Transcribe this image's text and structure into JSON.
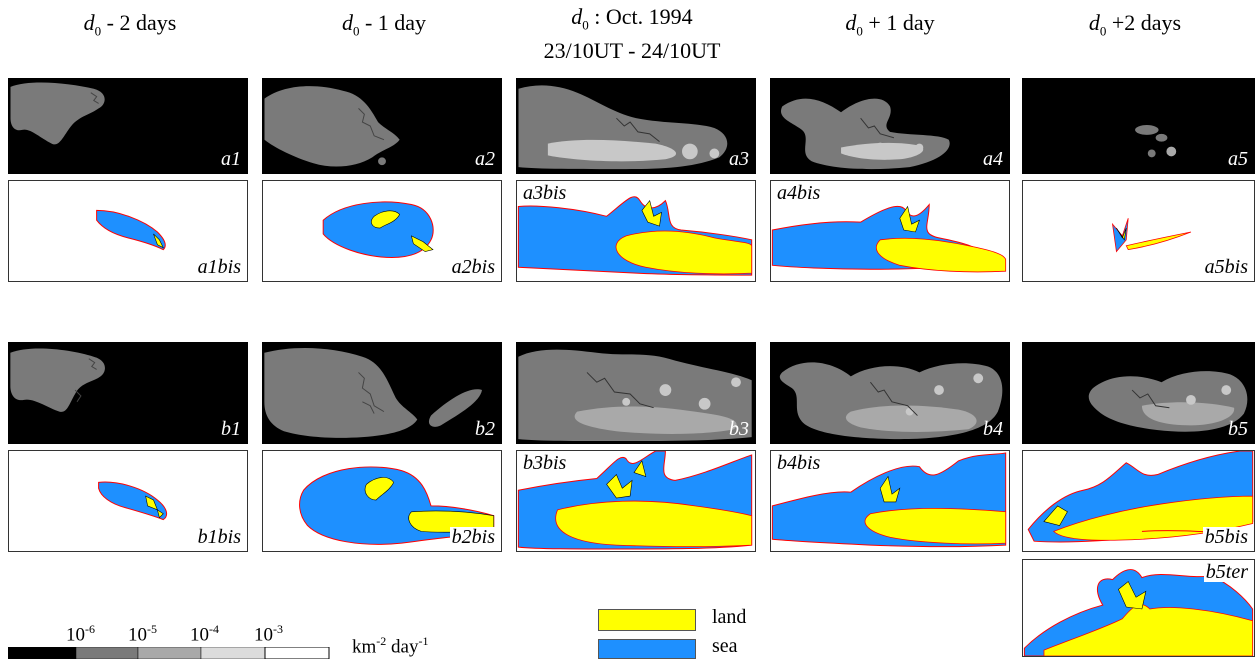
{
  "headers": [
    {
      "sym": "d",
      "sub": "0",
      "rest": " - 2 days",
      "line2": ""
    },
    {
      "sym": "d",
      "sub": "0",
      "rest": " - 1 day",
      "line2": ""
    },
    {
      "sym": "d",
      "sub": "0",
      "rest": " : Oct. 1994",
      "line2": "23/10UT - 24/10UT"
    },
    {
      "sym": "d",
      "sub": "0",
      "rest": " + 1 day",
      "line2": ""
    },
    {
      "sym": "d",
      "sub": "0",
      "rest": " +2 days",
      "line2": ""
    }
  ],
  "panel_labels": {
    "a1": "a1",
    "a2": "a2",
    "a3": "a3",
    "a4": "a4",
    "a5": "a5",
    "a1bis": "a1bis",
    "a2bis": "a2bis",
    "a3bis": "a3bis",
    "a4bis": "a4bis",
    "a5bis": "a5bis",
    "b1": "b1",
    "b2": "b2",
    "b3": "b3",
    "b4": "b4",
    "b5": "b5",
    "b1bis": "b1bis",
    "b2bis": "b2bis",
    "b3bis": "b3bis",
    "b4bis": "b4bis",
    "b5bis": "b5bis",
    "b5ter": "b5ter"
  },
  "colorbar": {
    "ticks": [
      {
        "base": "10",
        "exp": "-6"
      },
      {
        "base": "10",
        "exp": "-5"
      },
      {
        "base": "10",
        "exp": "-4"
      },
      {
        "base": "10",
        "exp": "-3"
      }
    ],
    "unit_a": "km",
    "unit_a_exp": "-2",
    "unit_b": " day",
    "unit_b_exp": "-1",
    "colors": [
      "#000000",
      "#7a7a7a",
      "#a9a9a9",
      "#dcdcdc",
      "#ffffff"
    ]
  },
  "legend": {
    "land": {
      "label": "land",
      "color": "#ffff00"
    },
    "sea": {
      "label": "sea",
      "color": "#1e90ff"
    }
  },
  "colors": {
    "outline": "#ff0000",
    "map_bg": "#000000",
    "density": "#7a7a7a",
    "density_hi": "#c8c8c8"
  }
}
